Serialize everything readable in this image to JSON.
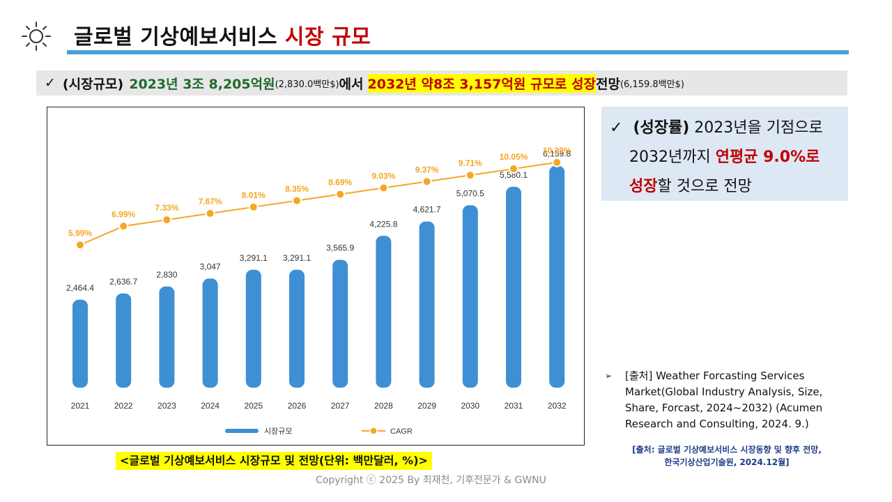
{
  "header": {
    "title_main": "글로벌 기상예보서비스",
    "title_accent": "시장 규모"
  },
  "summary": {
    "check": "✓",
    "label": "(시장규모)",
    "value_2023": "2023년 3조 8,205억원",
    "usd_2023": "(2,830.0백만$)",
    "connector": "에서",
    "forecast_2032": "2032년 약8조 3,157억원 규모로 성장",
    "outlook": "전망",
    "usd_2032": "(6,159.8백만$)"
  },
  "growth": {
    "check": "✓",
    "label": "(성장률)",
    "line1_rest": "2023년을 기점으로",
    "line2_start": "2032년까지",
    "line2_red": "연평균 9.0%로",
    "line3_red": "성장",
    "line3_rest": "할 것으로 전망"
  },
  "source": {
    "arrow": "➢",
    "text": "[출처] Weather Forcasting Services Market(Global Industry Analysis, Size, Share, Forcast, 2024~2032) (Acumen Research and Consulting, 2024. 9.)"
  },
  "reference": {
    "line1": "[출처: 글로벌 기상예보서비스 시장동향 및 향후 전망,",
    "line2": "한국기상산업기술원, 2024.12월]"
  },
  "caption": "<글로벌 기상예보서비스 시장규모 및 전망(단위: 백만달러, %)>",
  "copyright": "Copyright ⓒ 2025 By 최재천, 기후전문가 & GWNU",
  "colors": {
    "bar": "#3f8fd4",
    "line": "#f5a623",
    "accent_red": "#c00000",
    "title_bar": "#4a9fd8",
    "highlight": "#ffff00"
  },
  "chart_data": {
    "type": "bar",
    "categories": [
      "2021",
      "2022",
      "2023",
      "2024",
      "2025",
      "2026",
      "2027",
      "2028",
      "2029",
      "2030",
      "2031",
      "2032"
    ],
    "series": [
      {
        "name": "시장규모",
        "type": "bar",
        "values": [
          2464.4,
          2636.7,
          2830,
          3047,
          3291.1,
          3291.1,
          3565.9,
          4225.8,
          4621.7,
          5070.5,
          5580.1,
          6159.8
        ],
        "labels": [
          "2,464.4",
          "2,636.7",
          "2,830",
          "3,047",
          "3,291.1",
          "3,291.1",
          "3,565.9",
          "4,225.8",
          "4,621.7",
          "5,070.5",
          "5,580.1",
          "6,159.8"
        ]
      },
      {
        "name": "CAGR",
        "type": "line",
        "values": [
          5.99,
          6.99,
          7.33,
          7.67,
          8.01,
          8.35,
          8.69,
          9.03,
          9.37,
          9.71,
          10.05,
          10.39
        ],
        "labels": [
          "5.99%",
          "6.99%",
          "7.33%",
          "7.67%",
          "8.01%",
          "8.35%",
          "8.69%",
          "9.03%",
          "9.37%",
          "9.71%",
          "10.05%",
          "10.39%"
        ]
      }
    ],
    "title": "",
    "xlabel": "",
    "ylabel": "",
    "legend": [
      "시장규모",
      "CAGR"
    ],
    "legend_position": "bottom-center",
    "grid": false
  }
}
